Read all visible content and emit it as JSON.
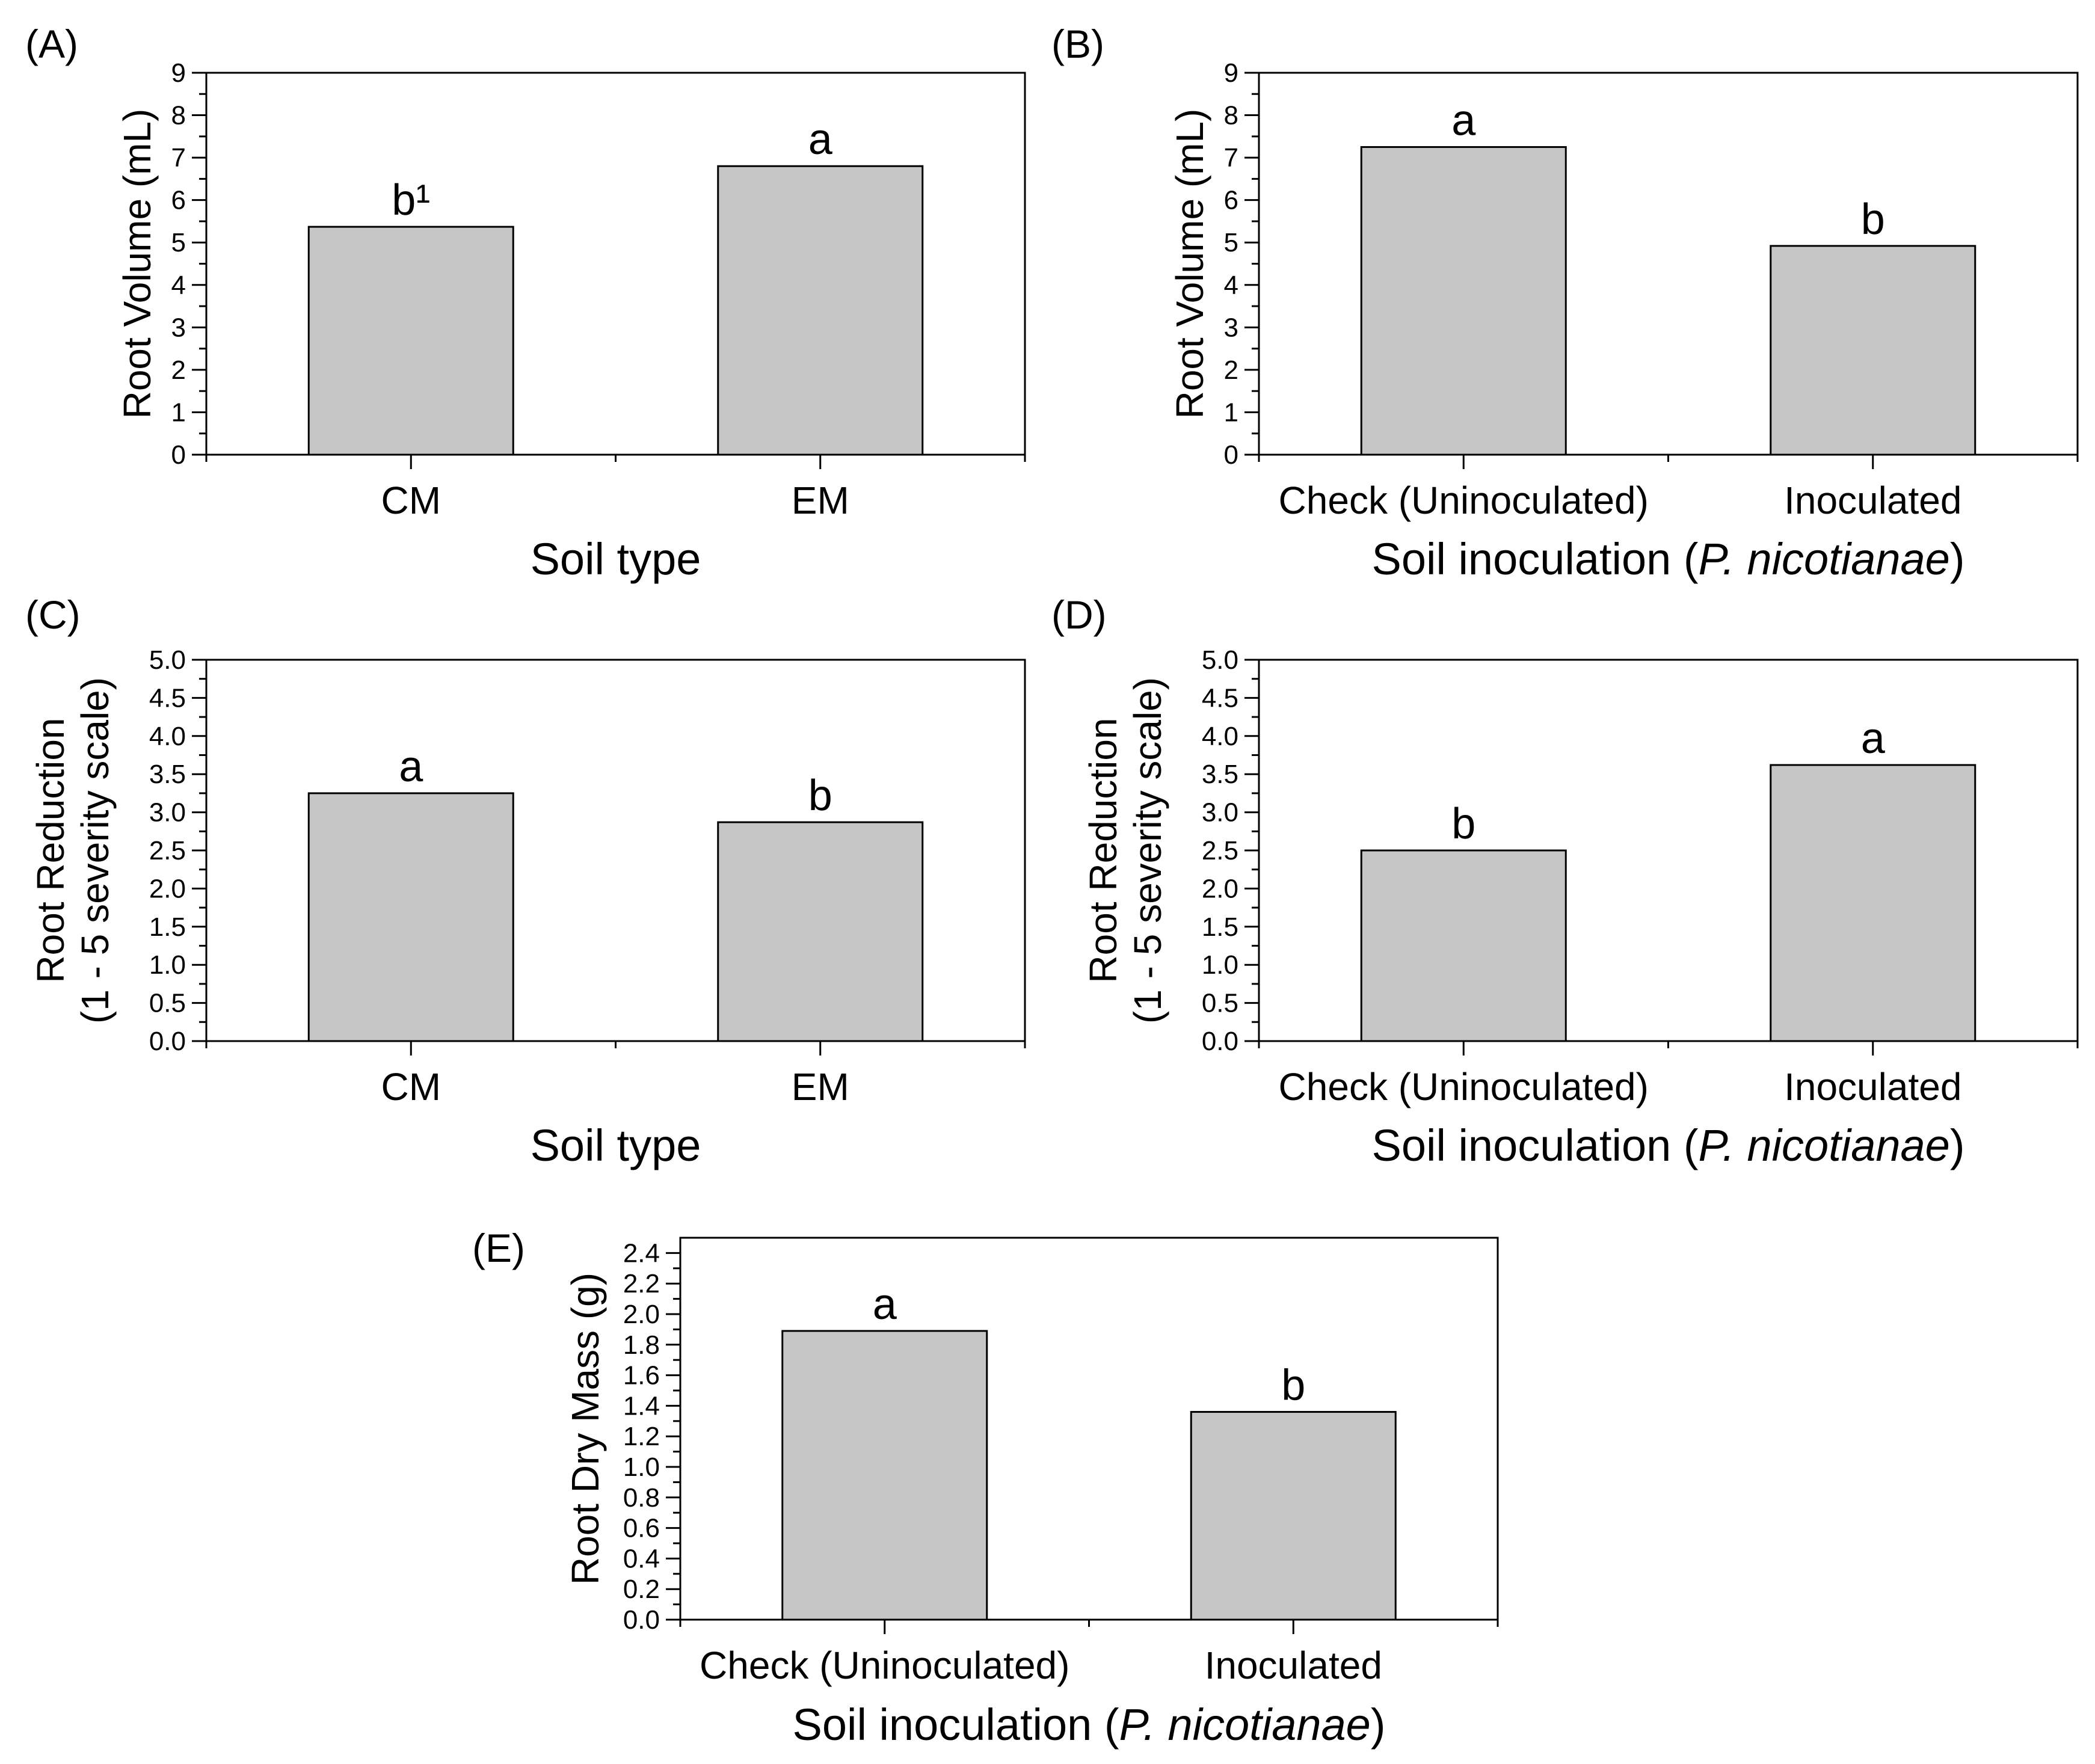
{
  "chart_data": [
    {
      "type": "bar",
      "panel": "(A)",
      "title": "",
      "xlabel": "Soil type",
      "ylabel": "Root Volume (mL)",
      "categories": [
        "CM",
        "EM"
      ],
      "values": [
        5.37,
        6.8
      ],
      "significance": [
        "b¹",
        "a"
      ],
      "ylim": [
        0,
        9
      ],
      "yticks": [
        0,
        1,
        2,
        3,
        4,
        5,
        6,
        7,
        8,
        9
      ],
      "ytick_labels": [
        "0",
        "1",
        "2",
        "3",
        "4",
        "5",
        "6",
        "7",
        "8",
        "9"
      ],
      "grid": false,
      "bar_color": "#c6c6c6"
    },
    {
      "type": "bar",
      "panel": "(B)",
      "title": "",
      "xlabel_prefix": "Soil inoculation (",
      "xlabel_species": "P. nicotianae",
      "xlabel_suffix": ")",
      "ylabel": "Root Volume (mL)",
      "categories": [
        "Check (Uninoculated)",
        "Inoculated"
      ],
      "values": [
        7.25,
        4.92
      ],
      "significance": [
        "a",
        "b"
      ],
      "ylim": [
        0,
        9
      ],
      "yticks": [
        0,
        1,
        2,
        3,
        4,
        5,
        6,
        7,
        8,
        9
      ],
      "ytick_labels": [
        "0",
        "1",
        "2",
        "3",
        "4",
        "5",
        "6",
        "7",
        "8",
        "9"
      ],
      "grid": false,
      "bar_color": "#c6c6c6"
    },
    {
      "type": "bar",
      "panel": "(C)",
      "title": "",
      "xlabel": "Soil type",
      "ylabel_line1": "Root Reduction",
      "ylabel_line2": "(1 - 5 severity scale)",
      "categories": [
        "CM",
        "EM"
      ],
      "values": [
        3.25,
        2.87
      ],
      "significance": [
        "a",
        "b"
      ],
      "ylim": [
        0,
        5
      ],
      "yticks": [
        0,
        0.5,
        1,
        1.5,
        2,
        2.5,
        3,
        3.5,
        4,
        4.5,
        5
      ],
      "ytick_labels": [
        "0.0",
        "0.5",
        "1.0",
        "1.5",
        "2.0",
        "2.5",
        "3.0",
        "3.5",
        "4.0",
        "4.5",
        "5.0"
      ],
      "grid": false,
      "bar_color": "#c6c6c6"
    },
    {
      "type": "bar",
      "panel": "(D)",
      "title": "",
      "xlabel_prefix": "Soil inoculation (",
      "xlabel_species": "P. nicotianae",
      "xlabel_suffix": ")",
      "ylabel_line1": "Root Reduction",
      "ylabel_line2": "(1 - 5 severity scale)",
      "categories": [
        "Check (Uninoculated)",
        "Inoculated"
      ],
      "values": [
        2.5,
        3.62
      ],
      "significance": [
        "b",
        "a"
      ],
      "ylim": [
        0,
        5
      ],
      "yticks": [
        0,
        0.5,
        1,
        1.5,
        2,
        2.5,
        3,
        3.5,
        4,
        4.5,
        5
      ],
      "ytick_labels": [
        "0.0",
        "0.5",
        "1.0",
        "1.5",
        "2.0",
        "2.5",
        "3.0",
        "3.5",
        "4.0",
        "4.5",
        "5.0"
      ],
      "grid": false,
      "bar_color": "#c6c6c6"
    },
    {
      "type": "bar",
      "panel": "(E)",
      "title": "",
      "xlabel_prefix": "Soil inoculation (",
      "xlabel_species": "P. nicotianae",
      "xlabel_suffix": ")",
      "ylabel": "Root Dry Mass (g)",
      "categories": [
        "Check (Uninoculated)",
        "Inoculated"
      ],
      "values": [
        1.89,
        1.36
      ],
      "significance": [
        "a",
        "b"
      ],
      "ylim": [
        0,
        2.5
      ],
      "yticks": [
        0,
        0.2,
        0.4,
        0.6,
        0.8,
        1.0,
        1.2,
        1.4,
        1.6,
        1.8,
        2.0,
        2.2,
        2.4
      ],
      "ytick_labels": [
        "0.0",
        "0.2",
        "0.4",
        "0.6",
        "0.8",
        "1.0",
        "1.2",
        "1.4",
        "1.6",
        "1.8",
        "2.0",
        "2.2",
        "2.4"
      ],
      "grid": false,
      "bar_color": "#c6c6c6"
    }
  ]
}
